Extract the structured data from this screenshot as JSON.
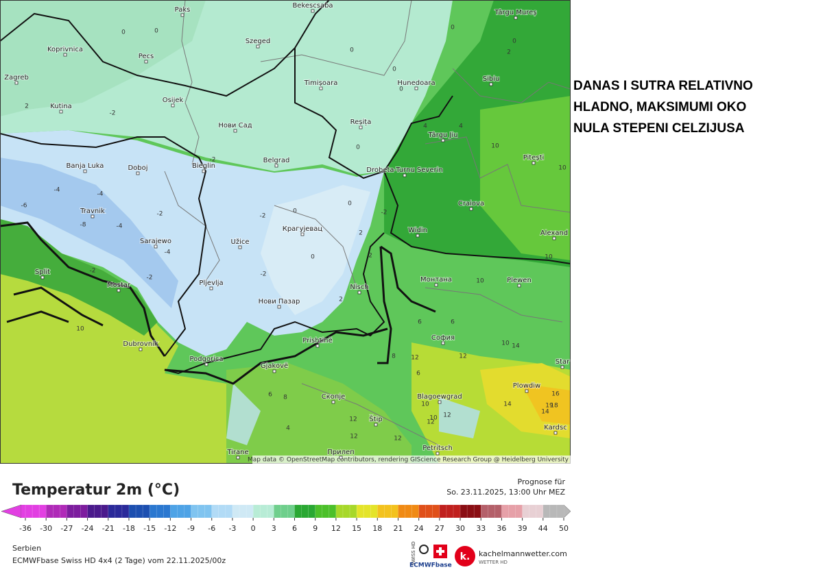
{
  "headline": [
    "DANAS I SUTRA RELATIVNO",
    "HLADNO, MAKSIMUMI OKO",
    "NULA STEPENI CELZIJUSA"
  ],
  "map": {
    "attribution": "Map data © OpenStreetMap contributors, rendering GIScience Research Group @ Heidelberg University",
    "cities": [
      "Paks",
      "Bekescsaba",
      "Târgu Mureș",
      "Koprivnica",
      "Szeged",
      "Pecs",
      "Zagreb",
      "Timișoara",
      "Hunedoara",
      "Sibiu",
      "Osijek",
      "Kutina",
      "Нови Сад",
      "Reșița",
      "Târgu Jiu",
      "Banja Luka",
      "Doboj",
      "Bieglin",
      "Belgrad",
      "Drobeta-Turnu Severin",
      "Pitești",
      "Craiova",
      "Travnik",
      "Sarajewo",
      "Užice",
      "Крагујевац",
      "Widin",
      "Alexand",
      "Mostar",
      "Split",
      "Pljevlja",
      "Nisch",
      "Монтана",
      "Plewen",
      "Нови Пазар",
      "Dubrovnik",
      "Prishtinë",
      "София",
      "Podgorica",
      "Gjakovë",
      "Star",
      "Plowdiw",
      "Скопје",
      "Blagoewgrad",
      "Štip",
      "Kardsc",
      "Tirane",
      "Прилеп",
      "Petritsch"
    ],
    "contour_labels": [
      0,
      0,
      0,
      2,
      0,
      0,
      0,
      0,
      4,
      4,
      2,
      -2,
      -2,
      0,
      -2,
      -4,
      -4,
      -6,
      -8,
      -4,
      -2,
      -2,
      -4,
      -2,
      -2,
      0,
      0,
      -2,
      0,
      2,
      2,
      2,
      6,
      6,
      10,
      10,
      10,
      10,
      12,
      10,
      14,
      14,
      16,
      18,
      19,
      12,
      8,
      6,
      12,
      12,
      10,
      12,
      14,
      12,
      12,
      10,
      6,
      10,
      8,
      4
    ]
  },
  "legend": {
    "title": "Temperatur 2m (°C)",
    "forecast_label": "Prognose für",
    "forecast_time": "So. 23.11.2025, 13:00 Uhr MEZ",
    "ticks": [
      -36,
      -30,
      -27,
      -24,
      -21,
      -18,
      -15,
      -12,
      -9,
      -6,
      -3,
      0,
      3,
      6,
      9,
      12,
      15,
      18,
      21,
      24,
      27,
      30,
      33,
      36,
      39,
      44,
      50
    ],
    "scale_colors": [
      "#e23fe2",
      "#b02ab8",
      "#7d1d9e",
      "#4b1a8c",
      "#2b2a9a",
      "#1c4fb0",
      "#2b78d0",
      "#4ea3e6",
      "#80c4f0",
      "#b2dbf6",
      "#cfe9f5",
      "#b8ecd6",
      "#6fcf8c",
      "#2aa833",
      "#4cc02a",
      "#a7d82a",
      "#e4e42a",
      "#f3c21e",
      "#f08a14",
      "#e0501a",
      "#c0201e",
      "#8a0e14",
      "#b4606a",
      "#e6a0a8",
      "#e8d0d4",
      "#b8b8b8"
    ],
    "region": "Serbien",
    "model": "ECMWFbase Swiss HD 4x4 (2 Tage) vom 22.11.2025/00z",
    "logo_swiss": "SWISS HD",
    "logo_ecmwf": "ECMWFbase",
    "logo_site": "kachelmannwetter.com",
    "logo_sub": "WETTER HD"
  }
}
